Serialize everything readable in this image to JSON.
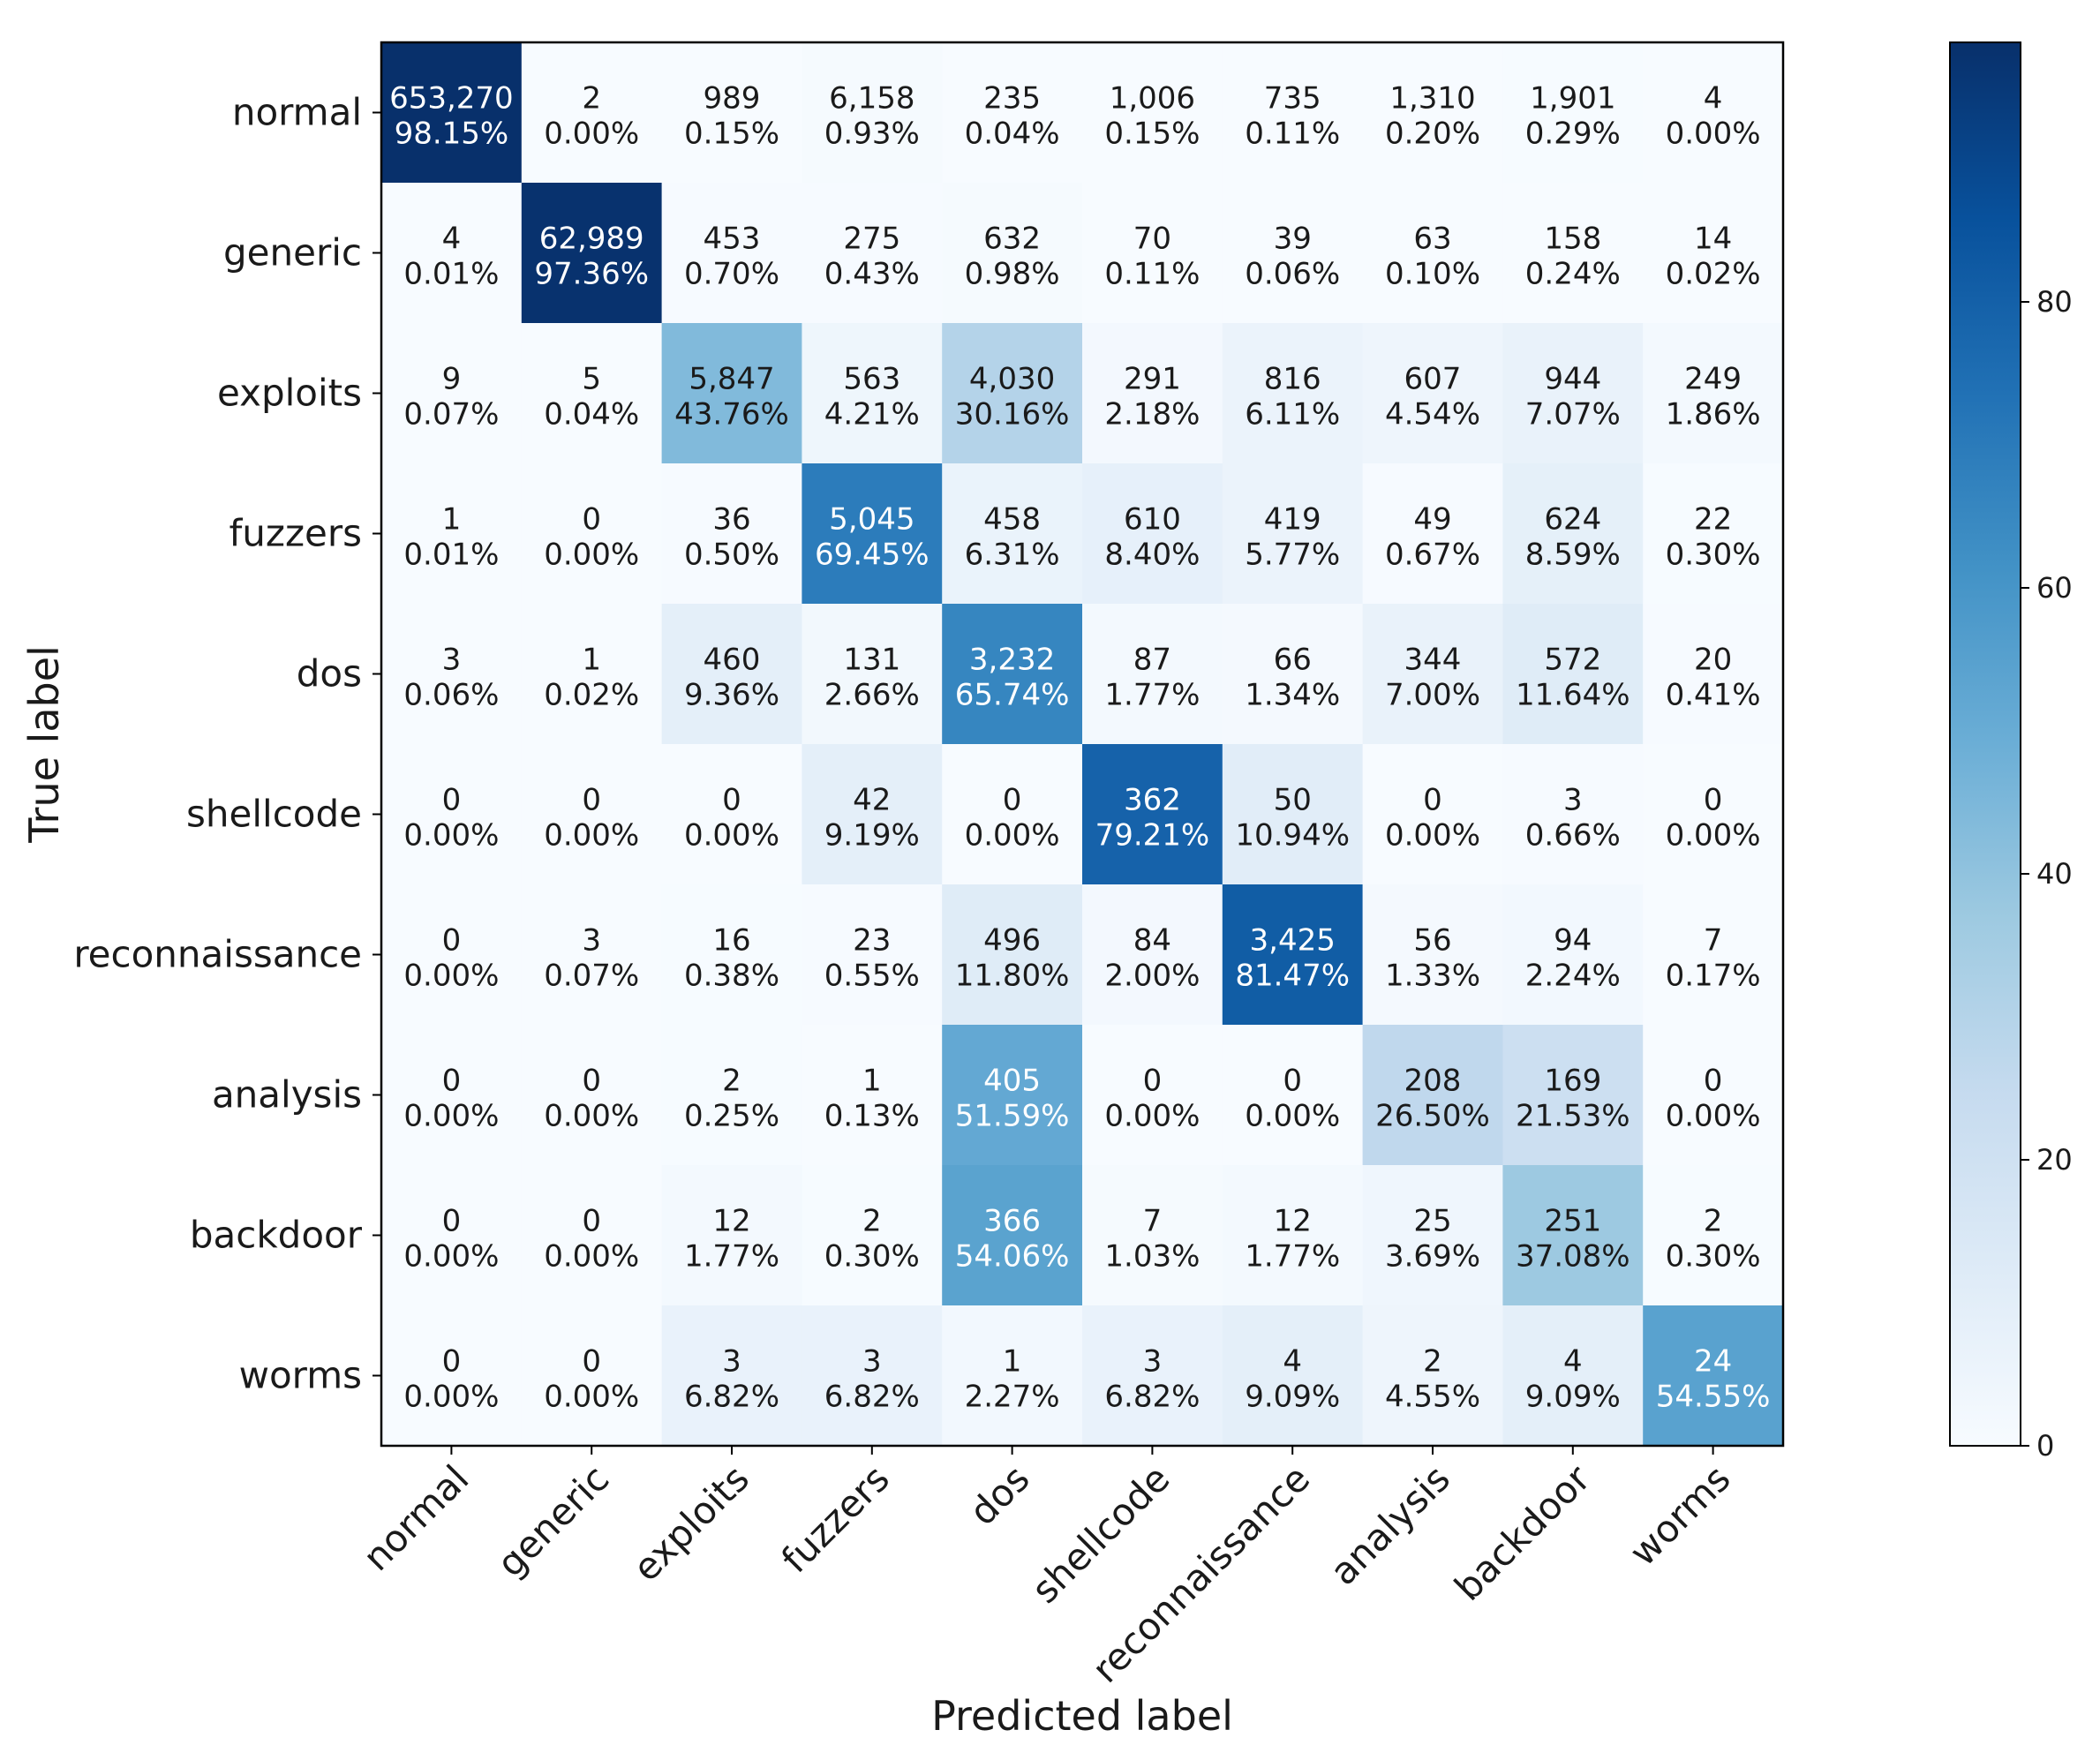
{
  "chart_data": {
    "type": "heatmap",
    "title": "",
    "xlabel": "Predicted label",
    "ylabel": "True label",
    "classes": [
      "normal",
      "generic",
      "exploits",
      "fuzzers",
      "dos",
      "shellcode",
      "reconnaissance",
      "analysis",
      "backdoor",
      "worms"
    ],
    "counts": [
      [
        "653,270",
        "2",
        "989",
        "6,158",
        "235",
        "1,006",
        "735",
        "1,310",
        "1,901",
        "4"
      ],
      [
        "4",
        "62,989",
        "453",
        "275",
        "632",
        "70",
        "39",
        "63",
        "158",
        "14"
      ],
      [
        "9",
        "5",
        "5,847",
        "563",
        "4,030",
        "291",
        "816",
        "607",
        "944",
        "249"
      ],
      [
        "1",
        "0",
        "36",
        "5,045",
        "458",
        "610",
        "419",
        "49",
        "624",
        "22"
      ],
      [
        "3",
        "1",
        "460",
        "131",
        "3,232",
        "87",
        "66",
        "344",
        "572",
        "20"
      ],
      [
        "0",
        "0",
        "0",
        "42",
        "0",
        "362",
        "50",
        "0",
        "3",
        "0"
      ],
      [
        "0",
        "3",
        "16",
        "23",
        "496",
        "84",
        "3,425",
        "56",
        "94",
        "7"
      ],
      [
        "0",
        "0",
        "2",
        "1",
        "405",
        "0",
        "0",
        "208",
        "169",
        "0"
      ],
      [
        "0",
        "0",
        "12",
        "2",
        "366",
        "7",
        "12",
        "25",
        "251",
        "2"
      ],
      [
        "0",
        "0",
        "3",
        "3",
        "1",
        "3",
        "4",
        "2",
        "4",
        "24"
      ]
    ],
    "percentages": [
      [
        "98.15%",
        "0.00%",
        "0.15%",
        "0.93%",
        "0.04%",
        "0.15%",
        "0.11%",
        "0.20%",
        "0.29%",
        "0.00%"
      ],
      [
        "0.01%",
        "97.36%",
        "0.70%",
        "0.43%",
        "0.98%",
        "0.11%",
        "0.06%",
        "0.10%",
        "0.24%",
        "0.02%"
      ],
      [
        "0.07%",
        "0.04%",
        "43.76%",
        "4.21%",
        "30.16%",
        "2.18%",
        "6.11%",
        "4.54%",
        "7.07%",
        "1.86%"
      ],
      [
        "0.01%",
        "0.00%",
        "0.50%",
        "69.45%",
        "6.31%",
        "8.40%",
        "5.77%",
        "0.67%",
        "8.59%",
        "0.30%"
      ],
      [
        "0.06%",
        "0.02%",
        "9.36%",
        "2.66%",
        "65.74%",
        "1.77%",
        "1.34%",
        "7.00%",
        "11.64%",
        "0.41%"
      ],
      [
        "0.00%",
        "0.00%",
        "0.00%",
        "9.19%",
        "0.00%",
        "79.21%",
        "10.94%",
        "0.00%",
        "0.66%",
        "0.00%"
      ],
      [
        "0.00%",
        "0.07%",
        "0.38%",
        "0.55%",
        "11.80%",
        "2.00%",
        "81.47%",
        "1.33%",
        "2.24%",
        "0.17%"
      ],
      [
        "0.00%",
        "0.00%",
        "0.25%",
        "0.13%",
        "51.59%",
        "0.00%",
        "0.00%",
        "26.50%",
        "21.53%",
        "0.00%"
      ],
      [
        "0.00%",
        "0.00%",
        "1.77%",
        "0.30%",
        "54.06%",
        "1.03%",
        "1.77%",
        "3.69%",
        "37.08%",
        "0.30%"
      ],
      [
        "0.00%",
        "0.00%",
        "6.82%",
        "6.82%",
        "2.27%",
        "6.82%",
        "9.09%",
        "4.55%",
        "9.09%",
        "54.55%"
      ]
    ],
    "colorbar": {
      "range": [
        0,
        98.15
      ],
      "ticks": [
        0,
        20,
        40,
        60,
        80
      ],
      "tick_labels": [
        "0",
        "20",
        "40",
        "60",
        "80"
      ],
      "colormap": "Blues",
      "colors": [
        "#f7fbff",
        "#deebf7",
        "#c6dbef",
        "#9ecae1",
        "#6baed6",
        "#4292c6",
        "#2171b5",
        "#08519c",
        "#08306b"
      ]
    },
    "text_colors": {
      "light": "#ffffff",
      "dark": "#1a1a1a"
    },
    "grid": false
  }
}
